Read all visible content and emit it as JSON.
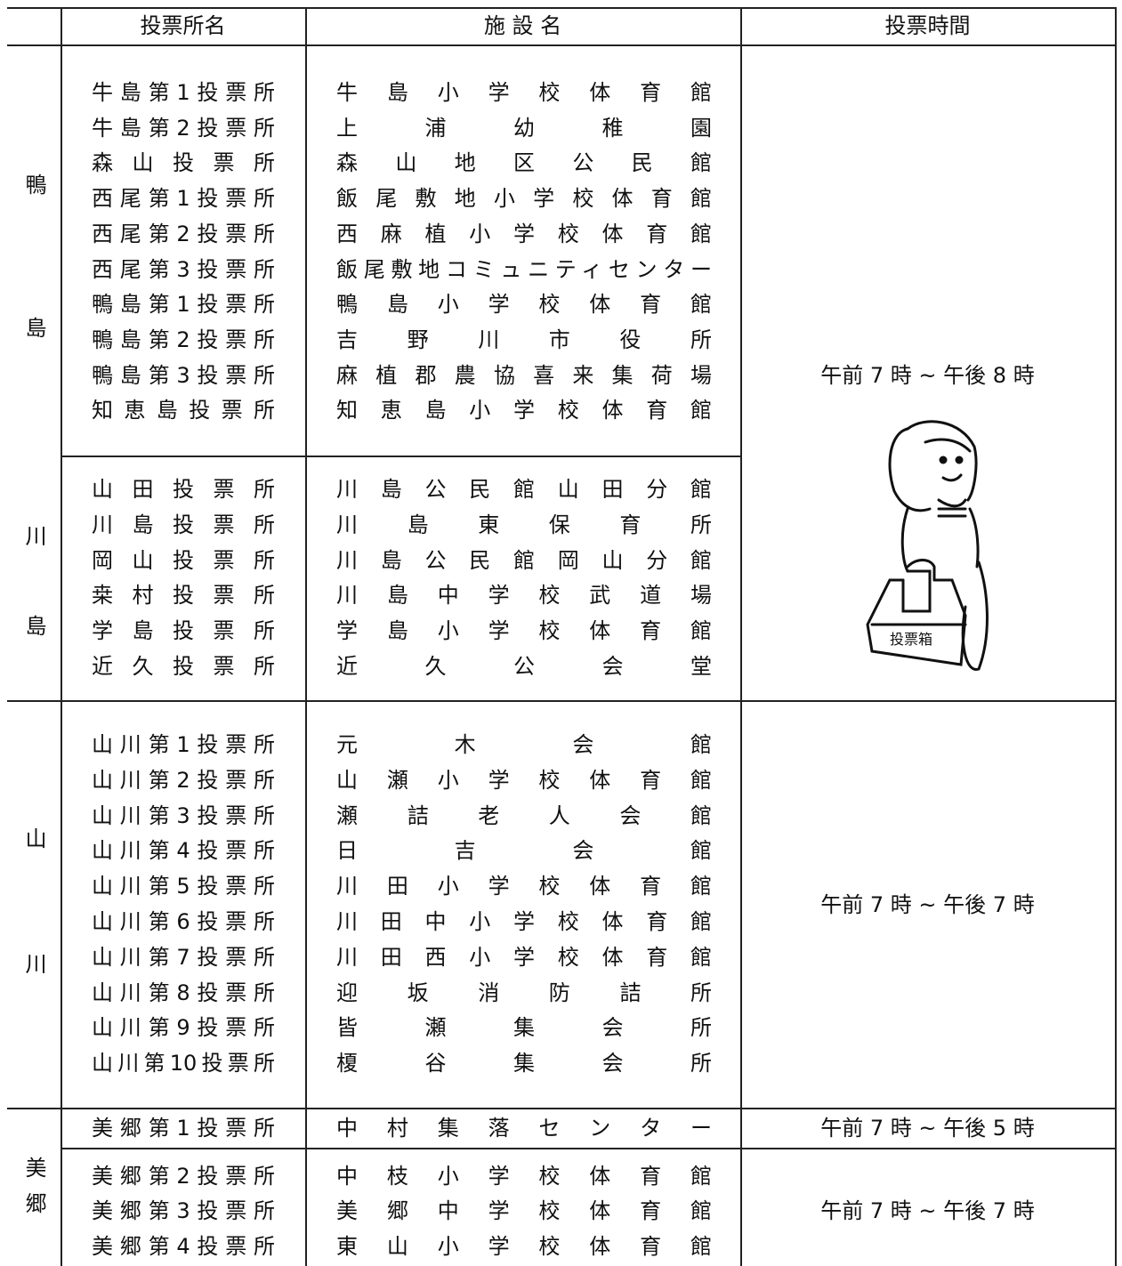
{
  "header": {
    "name": "投票所名",
    "facility": "施 設 名",
    "time": "投票時間"
  },
  "groups": [
    {
      "region": "鴨島",
      "stations": [
        {
          "name": "牛島第1投票所",
          "facility": "牛島小学校体育館"
        },
        {
          "name": "牛島第2投票所",
          "facility": "上浦幼稚園"
        },
        {
          "name": "森山投票所",
          "facility": "森山地区公民館"
        },
        {
          "name": "西尾第1投票所",
          "facility": "飯尾敷地小学校体育館"
        },
        {
          "name": "西尾第2投票所",
          "facility": "西麻植小学校体育館"
        },
        {
          "name": "西尾第3投票所",
          "facility": "飯尾敷地コミュニティセンター"
        },
        {
          "name": "鴨島第1投票所",
          "facility": "鴨島小学校体育館"
        },
        {
          "name": "鴨島第2投票所",
          "facility": "吉野川市役所"
        },
        {
          "name": "鴨島第3投票所",
          "facility": "麻植郡農協喜来集荷場"
        },
        {
          "name": "知恵島投票所",
          "facility": "知恵島小学校体育館"
        }
      ]
    },
    {
      "region": "川島",
      "stations": [
        {
          "name": "山田投票所",
          "facility": "川島公民館山田分館"
        },
        {
          "name": "川島投票所",
          "facility": "川島東保育所"
        },
        {
          "name": "岡山投票所",
          "facility": "川島公民館岡山分館"
        },
        {
          "name": "桒村投票所",
          "facility": "川島中学校武道場"
        },
        {
          "name": "学島投票所",
          "facility": "学島小学校体育館"
        },
        {
          "name": "近久投票所",
          "facility": "近久公会堂"
        }
      ]
    },
    {
      "region": "山川",
      "stations": [
        {
          "name": "山川第1投票所",
          "facility": "元木会館"
        },
        {
          "name": "山川第2投票所",
          "facility": "山瀬小学校体育館"
        },
        {
          "name": "山川第3投票所",
          "facility": "瀬詰老人会館"
        },
        {
          "name": "山川第4投票所",
          "facility": "日吉会館"
        },
        {
          "name": "山川第5投票所",
          "facility": "川田小学校体育館"
        },
        {
          "name": "山川第6投票所",
          "facility": "川田中小学校体育館"
        },
        {
          "name": "山川第7投票所",
          "facility": "川田西小学校体育館"
        },
        {
          "name": "山川第8投票所",
          "facility": "迎坂消防詰所"
        },
        {
          "name": "山川第9投票所",
          "facility": "皆瀬集会所"
        },
        {
          "name": "山川第10投票所",
          "facility": "榎谷集会所"
        }
      ]
    },
    {
      "region": "美郷",
      "stations": [
        {
          "name": "美郷第1投票所",
          "facility": "中村集落センター"
        },
        {
          "name": "美郷第2投票所",
          "facility": "中枝小学校体育館"
        },
        {
          "name": "美郷第3投票所",
          "facility": "美郷中学校体育館"
        },
        {
          "name": "美郷第4投票所",
          "facility": "東山小学校体育館"
        }
      ]
    }
  ],
  "hours": [
    "午前 7 時 ~ 午後 8 時",
    "午前 7 時 ~ 午後 7 時",
    "午前 7 時 ~ 午後 5 時",
    "午前 7 時 ~ 午後 7 時"
  ],
  "illustration_label": "投票箱"
}
